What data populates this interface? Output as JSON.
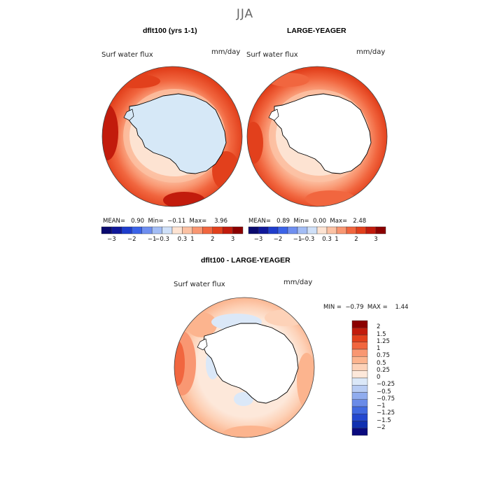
{
  "figure": {
    "season": "JJA"
  },
  "panels": [
    {
      "title": "dflt100 (yrs 1-1)",
      "variable": "Surf water flux",
      "units": "mm/day",
      "stats": {
        "mean_label": "MEAN=",
        "mean": "0.90",
        "min_label": "Min=",
        "min": "−0.11",
        "max_label": "Max=",
        "max": "3.96"
      },
      "antarctica_fill": "#d6e8f7"
    },
    {
      "title": "LARGE-YEAGER",
      "variable": "Surf water flux",
      "units": "mm/day",
      "stats": {
        "mean_label": "MEAN=",
        "mean": "0.89",
        "min_label": "Min=",
        "min": "0.00",
        "max_label": "Max=",
        "max": "2.48"
      },
      "antarctica_fill": "#ffffff"
    }
  ],
  "colorbar_top": {
    "colors": [
      "#0a0a6e",
      "#10189a",
      "#1f3dcc",
      "#3b63e8",
      "#6f8ff0",
      "#a3bdf5",
      "#cfe0f8",
      "#fde3d2",
      "#fcc2a4",
      "#f99772",
      "#f1663f",
      "#e2401c",
      "#c21b0c",
      "#8b0000"
    ],
    "tick_labels": [
      "−3",
      "−2",
      "−1",
      "−0.3",
      "0.3",
      "1",
      "2",
      "3"
    ]
  },
  "diff_panel": {
    "title": "dflt100 - LARGE-YEAGER",
    "variable": "Surf water flux",
    "units": "mm/day",
    "min_label": "MIN =",
    "min": "−0.79",
    "max_label": "MAX =",
    "max": "1.44"
  },
  "colorbar_diff": {
    "levels": [
      "2",
      "1.5",
      "1.25",
      "1",
      "0.75",
      "0.5",
      "0.25",
      "0",
      "−0.25",
      "−0.5",
      "−0.75",
      "−1",
      "−1.25",
      "−1.5",
      "−2"
    ],
    "colors": [
      "#8b0000",
      "#c21b0c",
      "#e2401c",
      "#f1663f",
      "#f99772",
      "#fcb48e",
      "#fdd2b8",
      "#fde8da",
      "#dbe8f8",
      "#b8ccf3",
      "#90acee",
      "#6a8be8",
      "#4169e0",
      "#2347cf",
      "#1030b0",
      "#0a0a7e"
    ]
  }
}
